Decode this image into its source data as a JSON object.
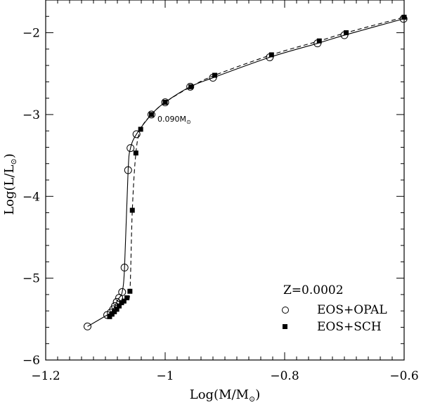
{
  "chart_data": {
    "type": "line",
    "xlabel_main": "Log(M/M",
    "xlabel_sub": "⊙",
    "xlabel_end": ")",
    "ylabel_main": "Log(L/L",
    "ylabel_sub": "⊙",
    "ylabel_end": ")",
    "xlim": [
      -1.2,
      -0.6
    ],
    "ylim": [
      -6,
      -1.6
    ],
    "x_ticks": [
      -1.2,
      -1,
      -0.8,
      -0.6
    ],
    "x_tick_labels": [
      "−1.2",
      "−1",
      "−0.8",
      "−0.6"
    ],
    "y_ticks": [
      -6,
      -5,
      -4,
      -3,
      -2
    ],
    "y_tick_labels": [
      "−6",
      "−5",
      "−4",
      "−3",
      "−2"
    ],
    "legend": {
      "title": "Z=0.0002",
      "position": "bottom-right"
    },
    "annotation": {
      "text_main": "0.090M",
      "text_sub": "⊙",
      "x": -1.023,
      "y": -3.0
    },
    "series": [
      {
        "name": "EOS+OPAL",
        "line": "solid",
        "marker": "open-circle",
        "x": [
          -1.13,
          -1.097,
          -1.091,
          -1.087,
          -1.084,
          -1.081,
          -1.077,
          -1.072,
          -1.068,
          -1.062,
          -1.058,
          -1.048,
          -1.023,
          -1.0,
          -0.958,
          -0.92,
          -0.825,
          -0.745,
          -0.7,
          -0.601
        ],
        "y": [
          -5.59,
          -5.45,
          -5.42,
          -5.38,
          -5.34,
          -5.29,
          -5.24,
          -5.17,
          -4.87,
          -3.68,
          -3.41,
          -3.24,
          -3.0,
          -2.85,
          -2.66,
          -2.55,
          -2.3,
          -2.13,
          -2.03,
          -1.83
        ]
      },
      {
        "name": "EOS+SCH",
        "line": "dashed",
        "marker": "filled-square",
        "x": [
          -1.093,
          -1.089,
          -1.085,
          -1.081,
          -1.077,
          -1.073,
          -1.069,
          -1.064,
          -1.059,
          -1.055,
          -1.049,
          -1.041,
          -1.023,
          -1.0,
          -0.957,
          -0.917,
          -0.822,
          -0.742,
          -0.697,
          -0.6
        ],
        "y": [
          -5.47,
          -5.44,
          -5.41,
          -5.38,
          -5.34,
          -5.3,
          -5.28,
          -5.24,
          -5.16,
          -4.17,
          -3.47,
          -3.18,
          -3.0,
          -2.85,
          -2.66,
          -2.52,
          -2.27,
          -2.1,
          -2.0,
          -1.81
        ]
      }
    ]
  }
}
